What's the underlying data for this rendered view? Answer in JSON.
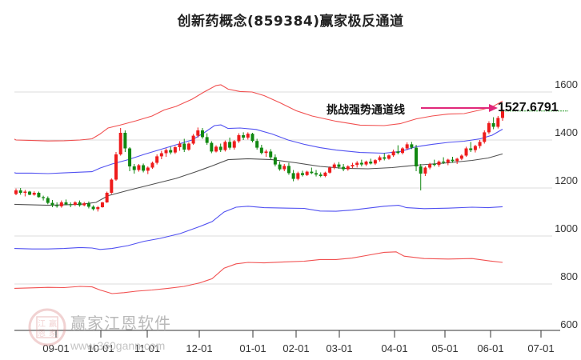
{
  "title": "创新药概念(859384)赢家极反通道",
  "annotation": {
    "label": "挑战强势通道线",
    "value": "1527.6791",
    "arrow_color": "#e0287a",
    "level_line_color": "#2a9a2a"
  },
  "watermark": {
    "name": "赢家江恩软件",
    "url": "www.360gann.com",
    "seal_chars": [
      "江",
      "赢",
      "恩",
      "家"
    ]
  },
  "colors": {
    "up": "#ee1c1c",
    "down": "#118811",
    "outer_band": "#ee3333",
    "inner_band": "#3333ee",
    "mid_line": "#333333",
    "grid": "#dddddd"
  },
  "chart_data": {
    "type": "candlestick",
    "title": "创新药概念(859384)赢家极反通道",
    "xlabel": "",
    "ylabel": "",
    "ylim": [
      600,
      1700
    ],
    "y_ticks": [
      600,
      800,
      1000,
      1200,
      1400,
      1600
    ],
    "x_ticks": [
      "09-01",
      "10-01",
      "11-01",
      "12-01",
      "01-01",
      "02-01",
      "03-01",
      "04-01",
      "05-01",
      "06-01",
      "07-01"
    ],
    "grid": "horizontal",
    "annotation": {
      "text": "挑战强势通道线",
      "value": 1527.6791
    },
    "series": [
      {
        "name": "outer_upper",
        "color": "red",
        "points": [
          [
            0,
            1404
          ],
          [
            20,
            1400
          ],
          [
            40,
            1398
          ],
          [
            60,
            1396
          ],
          [
            80,
            1397
          ],
          [
            100,
            1400
          ],
          [
            115,
            1405
          ],
          [
            125,
            1425
          ],
          [
            135,
            1450
          ],
          [
            150,
            1462
          ],
          [
            170,
            1480
          ],
          [
            190,
            1500
          ],
          [
            205,
            1525
          ],
          [
            220,
            1540
          ],
          [
            240,
            1570
          ],
          [
            255,
            1600
          ],
          [
            270,
            1627
          ],
          [
            276,
            1630
          ],
          [
            285,
            1612
          ],
          [
            300,
            1602
          ],
          [
            315,
            1600
          ],
          [
            330,
            1585
          ],
          [
            350,
            1555
          ],
          [
            370,
            1522
          ],
          [
            390,
            1500
          ],
          [
            420,
            1478
          ],
          [
            450,
            1462
          ],
          [
            480,
            1460
          ],
          [
            500,
            1468
          ],
          [
            520,
            1488
          ],
          [
            540,
            1500
          ],
          [
            560,
            1508
          ],
          [
            580,
            1510
          ],
          [
            600,
            1525
          ],
          [
            615,
            1538
          ],
          [
            628,
            1562
          ]
        ]
      },
      {
        "name": "inner_upper",
        "color": "blue",
        "points": [
          [
            0,
            1264
          ],
          [
            20,
            1262
          ],
          [
            40,
            1262
          ],
          [
            60,
            1260
          ],
          [
            80,
            1263
          ],
          [
            100,
            1266
          ],
          [
            115,
            1268
          ],
          [
            125,
            1283
          ],
          [
            140,
            1300
          ],
          [
            160,
            1318
          ],
          [
            180,
            1340
          ],
          [
            200,
            1360
          ],
          [
            220,
            1380
          ],
          [
            240,
            1400
          ],
          [
            255,
            1430
          ],
          [
            268,
            1460
          ],
          [
            276,
            1463
          ],
          [
            285,
            1448
          ],
          [
            300,
            1450
          ],
          [
            320,
            1444
          ],
          [
            340,
            1425
          ],
          [
            360,
            1400
          ],
          [
            380,
            1382
          ],
          [
            400,
            1368
          ],
          [
            420,
            1358
          ],
          [
            450,
            1348
          ],
          [
            480,
            1345
          ],
          [
            500,
            1352
          ],
          [
            520,
            1372
          ],
          [
            540,
            1382
          ],
          [
            560,
            1390
          ],
          [
            580,
            1395
          ],
          [
            600,
            1405
          ],
          [
            615,
            1420
          ],
          [
            628,
            1445
          ]
        ]
      },
      {
        "name": "mid",
        "color": "black",
        "points": [
          [
            18,
            1132
          ],
          [
            60,
            1128
          ],
          [
            100,
            1132
          ],
          [
            120,
            1140
          ],
          [
            135,
            1168
          ],
          [
            160,
            1190
          ],
          [
            190,
            1215
          ],
          [
            220,
            1240
          ],
          [
            245,
            1268
          ],
          [
            265,
            1292
          ],
          [
            285,
            1318
          ],
          [
            310,
            1322
          ],
          [
            340,
            1318
          ],
          [
            370,
            1305
          ],
          [
            400,
            1290
          ],
          [
            430,
            1282
          ],
          [
            460,
            1280
          ],
          [
            490,
            1285
          ],
          [
            520,
            1295
          ],
          [
            560,
            1305
          ],
          [
            590,
            1315
          ],
          [
            610,
            1325
          ],
          [
            628,
            1342
          ]
        ]
      },
      {
        "name": "inner_lower",
        "color": "blue",
        "points": [
          [
            18,
            948
          ],
          [
            40,
            946
          ],
          [
            60,
            946
          ],
          [
            80,
            948
          ],
          [
            100,
            952
          ],
          [
            115,
            950
          ],
          [
            125,
            944
          ],
          [
            140,
            948
          ],
          [
            160,
            960
          ],
          [
            180,
            978
          ],
          [
            200,
            990
          ],
          [
            225,
            1010
          ],
          [
            250,
            1040
          ],
          [
            265,
            1060
          ],
          [
            280,
            1100
          ],
          [
            295,
            1120
          ],
          [
            310,
            1124
          ],
          [
            330,
            1118
          ],
          [
            360,
            1116
          ],
          [
            380,
            1115
          ],
          [
            400,
            1104
          ],
          [
            420,
            1103
          ],
          [
            440,
            1108
          ],
          [
            460,
            1116
          ],
          [
            480,
            1124
          ],
          [
            498,
            1128
          ],
          [
            508,
            1118
          ],
          [
            530,
            1114
          ],
          [
            560,
            1116
          ],
          [
            590,
            1120
          ],
          [
            610,
            1118
          ],
          [
            628,
            1122
          ]
        ]
      },
      {
        "name": "outer_lower",
        "color": "red",
        "points": [
          [
            18,
            782
          ],
          [
            40,
            784
          ],
          [
            60,
            786
          ],
          [
            80,
            785
          ],
          [
            100,
            790
          ],
          [
            115,
            788
          ],
          [
            125,
            775
          ],
          [
            140,
            760
          ],
          [
            155,
            764
          ],
          [
            170,
            770
          ],
          [
            190,
            775
          ],
          [
            210,
            782
          ],
          [
            230,
            790
          ],
          [
            250,
            805
          ],
          [
            265,
            822
          ],
          [
            280,
            866
          ],
          [
            295,
            884
          ],
          [
            310,
            890
          ],
          [
            330,
            888
          ],
          [
            355,
            892
          ],
          [
            380,
            895
          ],
          [
            400,
            902
          ],
          [
            420,
            902
          ],
          [
            440,
            908
          ],
          [
            460,
            920
          ],
          [
            480,
            932
          ],
          [
            495,
            934
          ],
          [
            505,
            916
          ],
          [
            530,
            906
          ],
          [
            560,
            904
          ],
          [
            590,
            906
          ],
          [
            612,
            896
          ],
          [
            628,
            890
          ]
        ]
      }
    ],
    "candles_note": "Daily OHLC from ~08-15 to ~06-10; values estimated from pixels",
    "candles": [
      [
        1175,
        1198,
        1170,
        1190
      ],
      [
        1190,
        1200,
        1172,
        1180
      ],
      [
        1180,
        1192,
        1165,
        1185
      ],
      [
        1185,
        1188,
        1170,
        1172
      ],
      [
        1172,
        1186,
        1168,
        1180
      ],
      [
        1180,
        1185,
        1160,
        1162
      ],
      [
        1162,
        1168,
        1148,
        1158
      ],
      [
        1158,
        1165,
        1132,
        1138
      ],
      [
        1138,
        1150,
        1120,
        1128
      ],
      [
        1128,
        1140,
        1118,
        1124
      ],
      [
        1124,
        1148,
        1118,
        1140
      ],
      [
        1140,
        1152,
        1128,
        1132
      ],
      [
        1132,
        1140,
        1120,
        1130
      ],
      [
        1130,
        1145,
        1125,
        1140
      ],
      [
        1140,
        1148,
        1122,
        1128
      ],
      [
        1128,
        1142,
        1124,
        1136
      ],
      [
        1136,
        1144,
        1115,
        1122
      ],
      [
        1122,
        1128,
        1106,
        1112
      ],
      [
        1112,
        1125,
        1102,
        1120
      ],
      [
        1120,
        1142,
        1118,
        1140
      ],
      [
        1140,
        1185,
        1138,
        1180
      ],
      [
        1180,
        1240,
        1175,
        1235
      ],
      [
        1235,
        1350,
        1230,
        1340
      ],
      [
        1340,
        1450,
        1335,
        1430
      ],
      [
        1430,
        1440,
        1350,
        1365
      ],
      [
        1365,
        1370,
        1270,
        1290
      ],
      [
        1290,
        1300,
        1260,
        1275
      ],
      [
        1275,
        1300,
        1268,
        1295
      ],
      [
        1295,
        1302,
        1265,
        1272
      ],
      [
        1272,
        1290,
        1258,
        1285
      ],
      [
        1285,
        1310,
        1280,
        1305
      ],
      [
        1305,
        1340,
        1298,
        1332
      ],
      [
        1332,
        1355,
        1320,
        1345
      ],
      [
        1345,
        1365,
        1330,
        1358
      ],
      [
        1358,
        1372,
        1340,
        1348
      ],
      [
        1348,
        1375,
        1342,
        1370
      ],
      [
        1370,
        1395,
        1355,
        1385
      ],
      [
        1385,
        1405,
        1350,
        1360
      ],
      [
        1360,
        1390,
        1355,
        1385
      ],
      [
        1385,
        1425,
        1380,
        1418
      ],
      [
        1418,
        1452,
        1410,
        1440
      ],
      [
        1440,
        1450,
        1405,
        1412
      ],
      [
        1412,
        1428,
        1380,
        1388
      ],
      [
        1388,
        1395,
        1345,
        1352
      ],
      [
        1352,
        1378,
        1348,
        1372
      ],
      [
        1372,
        1385,
        1350,
        1358
      ],
      [
        1358,
        1398,
        1352,
        1392
      ],
      [
        1392,
        1410,
        1360,
        1368
      ],
      [
        1368,
        1400,
        1360,
        1395
      ],
      [
        1395,
        1428,
        1388,
        1420
      ],
      [
        1420,
        1432,
        1400,
        1410
      ],
      [
        1410,
        1432,
        1402,
        1426
      ],
      [
        1426,
        1430,
        1390,
        1396
      ],
      [
        1396,
        1405,
        1360,
        1368
      ],
      [
        1368,
        1380,
        1340,
        1346
      ],
      [
        1346,
        1360,
        1330,
        1352
      ],
      [
        1352,
        1362,
        1320,
        1328
      ],
      [
        1328,
        1340,
        1290,
        1298
      ],
      [
        1298,
        1310,
        1272,
        1278
      ],
      [
        1278,
        1300,
        1270,
        1292
      ],
      [
        1292,
        1305,
        1255,
        1262
      ],
      [
        1262,
        1275,
        1228,
        1238
      ],
      [
        1238,
        1268,
        1232,
        1262
      ],
      [
        1262,
        1272,
        1248,
        1254
      ],
      [
        1254,
        1272,
        1250,
        1268
      ],
      [
        1268,
        1285,
        1258,
        1262
      ],
      [
        1262,
        1275,
        1248,
        1256
      ],
      [
        1256,
        1265,
        1245,
        1250
      ],
      [
        1250,
        1268,
        1245,
        1264
      ],
      [
        1264,
        1290,
        1260,
        1285
      ],
      [
        1285,
        1305,
        1278,
        1298
      ],
      [
        1298,
        1308,
        1280,
        1288
      ],
      [
        1288,
        1300,
        1270,
        1278
      ],
      [
        1278,
        1295,
        1272,
        1290
      ],
      [
        1290,
        1305,
        1282,
        1296
      ],
      [
        1296,
        1312,
        1285,
        1305
      ],
      [
        1305,
        1318,
        1290,
        1298
      ],
      [
        1298,
        1314,
        1292,
        1310
      ],
      [
        1310,
        1322,
        1298,
        1302
      ],
      [
        1302,
        1320,
        1296,
        1316
      ],
      [
        1316,
        1335,
        1310,
        1328
      ],
      [
        1328,
        1345,
        1315,
        1322
      ],
      [
        1322,
        1340,
        1318,
        1336
      ],
      [
        1336,
        1360,
        1330,
        1352
      ],
      [
        1352,
        1378,
        1340,
        1346
      ],
      [
        1346,
        1370,
        1340,
        1365
      ],
      [
        1365,
        1390,
        1358,
        1382
      ],
      [
        1382,
        1392,
        1362,
        1368
      ],
      [
        1368,
        1380,
        1270,
        1290
      ],
      [
        1290,
        1300,
        1190,
        1260
      ],
      [
        1260,
        1290,
        1250,
        1285
      ],
      [
        1285,
        1305,
        1278,
        1300
      ],
      [
        1300,
        1318,
        1290,
        1296
      ],
      [
        1296,
        1315,
        1288,
        1310
      ],
      [
        1310,
        1328,
        1300,
        1306
      ],
      [
        1306,
        1322,
        1295,
        1318
      ],
      [
        1318,
        1330,
        1305,
        1312
      ],
      [
        1312,
        1326,
        1300,
        1322
      ],
      [
        1322,
        1340,
        1316,
        1335
      ],
      [
        1335,
        1372,
        1330,
        1365
      ],
      [
        1365,
        1392,
        1350,
        1358
      ],
      [
        1358,
        1380,
        1348,
        1375
      ],
      [
        1375,
        1400,
        1365,
        1392
      ],
      [
        1392,
        1440,
        1385,
        1432
      ],
      [
        1432,
        1478,
        1425,
        1470
      ],
      [
        1470,
        1495,
        1445,
        1455
      ],
      [
        1455,
        1500,
        1448,
        1492
      ],
      [
        1492,
        1528,
        1480,
        1520
      ]
    ]
  }
}
